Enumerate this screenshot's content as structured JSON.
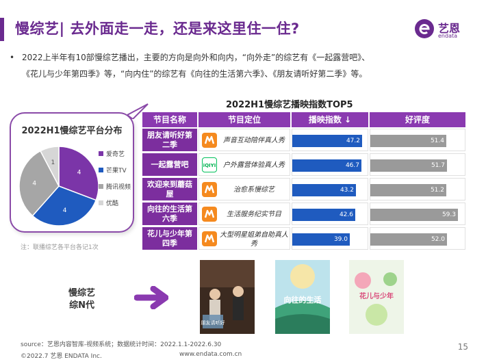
{
  "header": {
    "title": "慢综艺| 去外面走一走，还是来这里住一住?",
    "logo_text": "艺恩",
    "logo_sub": "endata"
  },
  "bullet": {
    "dot": "•",
    "line1": "2022上半年有10部慢综艺播出，主要的方向是向外和向内，“向外走”的综艺有《一起露营吧》、",
    "line2": "《花儿与少年第四季》等，“向内住”的综艺有《向往的生活第六季》、《朋友请听好第二季》等。"
  },
  "pie_chart": {
    "title": "2022H1慢综艺平台分布",
    "note": "注：联播综艺各平台各记1次",
    "chart_data": {
      "type": "pie",
      "title": "2022H1慢综艺平台分布",
      "slices": [
        {
          "name": "爱奇艺",
          "value": 4,
          "color": "#7b35a8"
        },
        {
          "name": "芒果TV",
          "value": 4,
          "color": "#1f5bbf"
        },
        {
          "name": "腾讯视频",
          "value": 4,
          "color": "#a6a6a6"
        },
        {
          "name": "优酷",
          "value": 1,
          "color": "#d6d6d6"
        }
      ]
    }
  },
  "table": {
    "title": "2022H1慢综艺播映指数TOP5",
    "headers": {
      "name": "节目名称",
      "position": "节目定位",
      "play": "播映指数 ↓",
      "good": "好评度"
    },
    "rows": [
      {
        "name": "朋友请听好第二季",
        "platform": "mango",
        "position": "声音互动陪伴真人秀",
        "play": 47.2,
        "play_label": "47.2",
        "good": 51.4,
        "good_label": "51.4"
      },
      {
        "name": "一起露营吧",
        "platform": "iqiyi",
        "position": "户外露营体验真人秀",
        "play": 46.7,
        "play_label": "46.7",
        "good": 51.7,
        "good_label": "51.7"
      },
      {
        "name": "欢迎来到蘑菇屋",
        "platform": "mango",
        "position": "治愈系慢综艺",
        "play": 43.2,
        "play_label": "43.2",
        "good": 51.2,
        "good_label": "51.2"
      },
      {
        "name": "向往的生活第六季",
        "platform": "mango",
        "position": "生活服务纪实节目",
        "play": 42.6,
        "play_label": "42.6",
        "good": 59.3,
        "good_label": "59.3"
      },
      {
        "name": "花儿与少年第四季",
        "platform": "mango",
        "position": "大型明星姐弟自助真人秀",
        "play": 39.0,
        "play_label": "39.0",
        "good": 52.0,
        "good_label": "52.0"
      }
    ],
    "chart_data": {
      "type": "bar",
      "categories": [
        "朋友请听好第二季",
        "一起露营吧",
        "欢迎来到蘑菇屋",
        "向往的生活第六季",
        "花儿与少年第四季"
      ],
      "series": [
        {
          "name": "播映指数",
          "values": [
            47.2,
            46.7,
            43.2,
            42.6,
            39.0
          ]
        },
        {
          "name": "好评度",
          "values": [
            51.4,
            51.7,
            51.2,
            59.3,
            52.0
          ]
        }
      ]
    }
  },
  "gen_label": {
    "line1": "慢综艺",
    "line2": "综N代"
  },
  "posters": [
    {
      "name": "poster-pengyou",
      "caption": "朋友请听好"
    },
    {
      "name": "poster-xiangwang",
      "caption": "向往的生活"
    },
    {
      "name": "poster-huaer",
      "caption": "花儿与少年"
    }
  ],
  "footer": {
    "source": "source：艺恩内容智库-视频系统；数据统计时间：2022.1.1-2022.6.30",
    "copyright": "©2022.7 艺恩 ENDATA Inc.",
    "website": "www.endata.com.cn",
    "page": "15"
  },
  "colors": {
    "purple": "#6a2a8f",
    "blue": "#1f5bbf",
    "gray": "#9a9a9a"
  }
}
